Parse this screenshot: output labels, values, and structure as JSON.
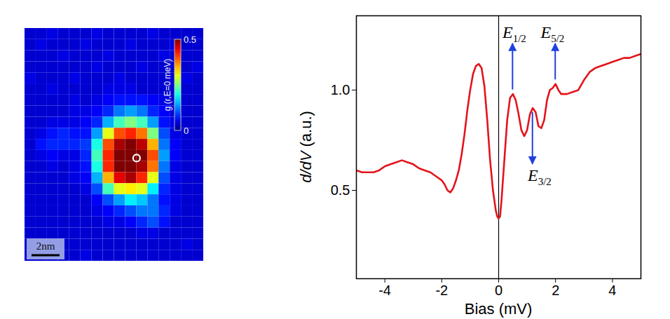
{
  "chart_data": [
    {
      "type": "heatmap",
      "tick_labels": false,
      "cells": [
        [
          0.04,
          0.04,
          0.05,
          0.04,
          0.04,
          0.04,
          0.05,
          0.04,
          0.04,
          0.04,
          0.04,
          0.05,
          0.04,
          0.04,
          0.04,
          0.04
        ],
        [
          0.04,
          0.05,
          0.04,
          0.04,
          0.04,
          0.05,
          0.04,
          0.04,
          0.04,
          0.05,
          0.04,
          0.04,
          0.04,
          0.05,
          0.04,
          0.04
        ],
        [
          0.04,
          0.04,
          0.04,
          0.05,
          0.04,
          0.04,
          0.04,
          0.05,
          0.04,
          0.04,
          0.04,
          0.04,
          0.05,
          0.04,
          0.04,
          0.04
        ],
        [
          0.04,
          0.04,
          0.04,
          0.04,
          0.04,
          0.04,
          0.05,
          0.04,
          0.04,
          0.04,
          0.05,
          0.04,
          0.04,
          0.04,
          0.04,
          0.05
        ],
        [
          0.05,
          0.04,
          0.04,
          0.04,
          0.05,
          0.04,
          0.04,
          0.04,
          0.05,
          0.04,
          0.04,
          0.04,
          0.04,
          0.04,
          0.05,
          0.04
        ],
        [
          0.04,
          0.04,
          0.05,
          0.04,
          0.04,
          0.04,
          0.04,
          0.05,
          0.05,
          0.05,
          0.04,
          0.04,
          0.04,
          0.04,
          0.04,
          0.04
        ],
        [
          0.04,
          0.04,
          0.04,
          0.04,
          0.05,
          0.04,
          0.05,
          0.06,
          0.07,
          0.07,
          0.07,
          0.06,
          0.05,
          0.04,
          0.04,
          0.04
        ],
        [
          0.04,
          0.04,
          0.04,
          0.04,
          0.05,
          0.05,
          0.06,
          0.08,
          0.12,
          0.14,
          0.12,
          0.08,
          0.06,
          0.04,
          0.04,
          0.04
        ],
        [
          0.04,
          0.04,
          0.05,
          0.05,
          0.05,
          0.06,
          0.08,
          0.15,
          0.22,
          0.25,
          0.22,
          0.14,
          0.07,
          0.05,
          0.04,
          0.04
        ],
        [
          0.04,
          0.05,
          0.07,
          0.08,
          0.07,
          0.07,
          0.14,
          0.3,
          0.4,
          0.42,
          0.38,
          0.25,
          0.1,
          0.05,
          0.04,
          0.04
        ],
        [
          0.04,
          0.07,
          0.08,
          0.08,
          0.08,
          0.09,
          0.2,
          0.4,
          0.48,
          0.5,
          0.47,
          0.35,
          0.12,
          0.06,
          0.04,
          0.04
        ],
        [
          0.04,
          0.05,
          0.06,
          0.05,
          0.05,
          0.08,
          0.22,
          0.42,
          0.5,
          0.5,
          0.5,
          0.4,
          0.14,
          0.06,
          0.04,
          0.04
        ],
        [
          0.04,
          0.04,
          0.05,
          0.04,
          0.05,
          0.07,
          0.2,
          0.42,
          0.5,
          0.5,
          0.48,
          0.38,
          0.12,
          0.05,
          0.04,
          0.04
        ],
        [
          0.04,
          0.04,
          0.04,
          0.04,
          0.05,
          0.06,
          0.15,
          0.35,
          0.45,
          0.48,
          0.42,
          0.3,
          0.1,
          0.05,
          0.04,
          0.04
        ],
        [
          0.04,
          0.04,
          0.04,
          0.04,
          0.04,
          0.05,
          0.1,
          0.22,
          0.3,
          0.32,
          0.3,
          0.18,
          0.08,
          0.05,
          0.04,
          0.04
        ],
        [
          0.04,
          0.04,
          0.04,
          0.04,
          0.04,
          0.04,
          0.06,
          0.1,
          0.14,
          0.18,
          0.16,
          0.12,
          0.07,
          0.05,
          0.04,
          0.04
        ],
        [
          0.04,
          0.04,
          0.04,
          0.04,
          0.04,
          0.04,
          0.05,
          0.06,
          0.08,
          0.1,
          0.12,
          0.12,
          0.08,
          0.05,
          0.04,
          0.04
        ],
        [
          0.04,
          0.04,
          0.04,
          0.04,
          0.04,
          0.04,
          0.04,
          0.05,
          0.05,
          0.06,
          0.08,
          0.1,
          0.07,
          0.04,
          0.04,
          0.04
        ],
        [
          0.04,
          0.04,
          0.04,
          0.04,
          0.04,
          0.04,
          0.04,
          0.04,
          0.04,
          0.04,
          0.05,
          0.05,
          0.04,
          0.04,
          0.04,
          0.04
        ],
        [
          0.04,
          0.04,
          0.05,
          0.04,
          0.04,
          0.04,
          0.04,
          0.04,
          0.04,
          0.04,
          0.04,
          0.04,
          0.04,
          0.04,
          0.05,
          0.04
        ],
        [
          0.04,
          0.04,
          0.04,
          0.04,
          0.04,
          0.05,
          0.04,
          0.04,
          0.04,
          0.04,
          0.04,
          0.04,
          0.04,
          0.04,
          0.04,
          0.04
        ]
      ],
      "colorbar": {
        "label": "g (r,E=0 meV)",
        "range": [
          0,
          0.5
        ],
        "ticks": [
          0,
          0.5
        ]
      },
      "points": [
        {
          "x": 10.0,
          "y": 11.7
        }
      ],
      "marker": "circle",
      "scale_bar": "2nm"
    },
    {
      "type": "line",
      "x_label": "Bias (mV)",
      "y_label": "d/dV (a.u.)",
      "x": [
        -5,
        -4.8,
        -4.6,
        -4.4,
        -4.2,
        -4,
        -3.8,
        -3.6,
        -3.4,
        -3.2,
        -3,
        -2.8,
        -2.6,
        -2.4,
        -2.2,
        -2,
        -1.9,
        -1.8,
        -1.7,
        -1.6,
        -1.5,
        -1.4,
        -1.3,
        -1.2,
        -1.1,
        -1,
        -0.9,
        -0.8,
        -0.7,
        -0.6,
        -0.5,
        -0.4,
        -0.3,
        -0.2,
        -0.1,
        -0.05,
        0,
        0.05,
        0.1,
        0.2,
        0.3,
        0.4,
        0.5,
        0.6,
        0.7,
        0.8,
        0.9,
        1,
        1.1,
        1.2,
        1.3,
        1.4,
        1.5,
        1.6,
        1.7,
        1.8,
        1.9,
        2,
        2.1,
        2.2,
        2.4,
        2.6,
        2.8,
        3,
        3.2,
        3.4,
        3.6,
        3.8,
        4,
        4.2,
        4.4,
        4.6,
        4.8,
        5
      ],
      "series": [
        {
          "color": "#e3141b",
          "values": [
            0.6,
            0.59,
            0.59,
            0.59,
            0.6,
            0.62,
            0.63,
            0.64,
            0.65,
            0.64,
            0.63,
            0.61,
            0.6,
            0.59,
            0.57,
            0.55,
            0.53,
            0.5,
            0.49,
            0.51,
            0.55,
            0.6,
            0.68,
            0.78,
            0.9,
            1.0,
            1.08,
            1.12,
            1.13,
            1.11,
            1.02,
            0.85,
            0.65,
            0.5,
            0.4,
            0.37,
            0.36,
            0.37,
            0.45,
            0.65,
            0.85,
            0.96,
            0.98,
            0.95,
            0.88,
            0.8,
            0.77,
            0.8,
            0.88,
            0.91,
            0.89,
            0.82,
            0.81,
            0.85,
            0.95,
            1.0,
            1.01,
            1.03,
            1.0,
            0.98,
            0.98,
            0.99,
            1.0,
            1.05,
            1.09,
            1.11,
            1.12,
            1.13,
            1.14,
            1.15,
            1.16,
            1.16,
            1.17,
            1.18
          ]
        }
      ],
      "xlim": [
        -5,
        5
      ],
      "xticks": [
        -4,
        -2,
        0,
        2,
        4
      ],
      "ylim": [
        0.06,
        1.37
      ],
      "yticks": [
        0.5,
        {
          "value": 1,
          "label": "1.0"
        }
      ],
      "vlines": [
        0
      ],
      "annotations": [
        {
          "text": "E",
          "subscript": "1/2",
          "x": 0.5,
          "y": 0.98,
          "direction": "up"
        },
        {
          "text": "E",
          "subscript": "3/2",
          "x": 1.2,
          "y": 0.91,
          "direction": "down"
        },
        {
          "text": "E",
          "subscript": "5/2",
          "x": 2.0,
          "y": 1.03,
          "direction": "up"
        }
      ]
    }
  ]
}
